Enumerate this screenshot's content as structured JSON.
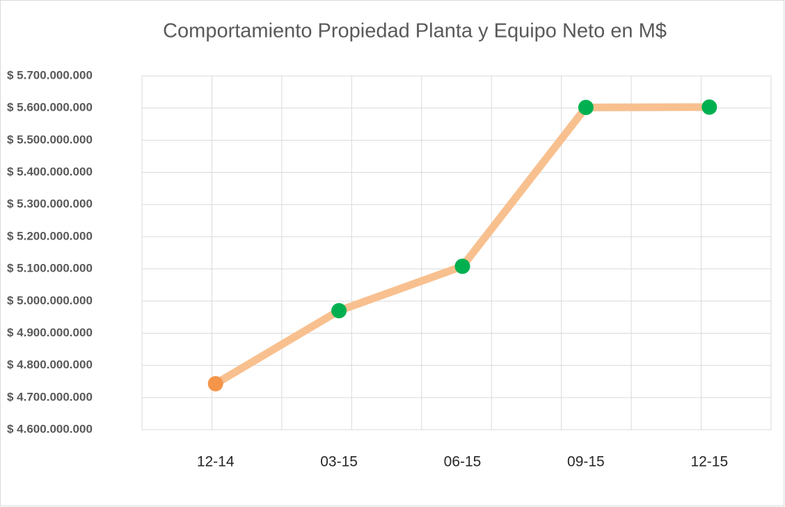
{
  "chart_data": {
    "type": "line",
    "title": "Comportamiento Propiedad Planta y Equipo Neto en M$",
    "categories": [
      "12-14",
      "03-15",
      "06-15",
      "09-15",
      "12-15"
    ],
    "series": [
      {
        "name": "Propiedad Planta y Equipo Neto",
        "color": "#f8c08f",
        "values": [
          4743000000,
          4970000000,
          5108000000,
          5602000000,
          5603000000
        ],
        "point_colors": [
          "#f4954a",
          "#00b050",
          "#00b050",
          "#00b050",
          "#00b050"
        ]
      }
    ],
    "ylim": [
      4600000000,
      5700000000
    ],
    "yticks": [
      {
        "value": 4600000000,
        "label": "$ 4.600.000.000"
      },
      {
        "value": 4700000000,
        "label": "$ 4.700.000.000"
      },
      {
        "value": 4800000000,
        "label": "$ 4.800.000.000"
      },
      {
        "value": 4900000000,
        "label": "$ 4.900.000.000"
      },
      {
        "value": 5000000000,
        "label": "$ 5.000.000.000"
      },
      {
        "value": 5100000000,
        "label": "$ 5.100.000.000"
      },
      {
        "value": 5200000000,
        "label": "$ 5.200.000.000"
      },
      {
        "value": 5300000000,
        "label": "$ 5.300.000.000"
      },
      {
        "value": 5400000000,
        "label": "$ 5.400.000.000"
      },
      {
        "value": 5500000000,
        "label": "$ 5.500.000.000"
      },
      {
        "value": 5600000000,
        "label": "$ 5.600.000.000"
      },
      {
        "value": 5700000000,
        "label": "$ 5.700.000.000"
      }
    ],
    "grid": true
  }
}
